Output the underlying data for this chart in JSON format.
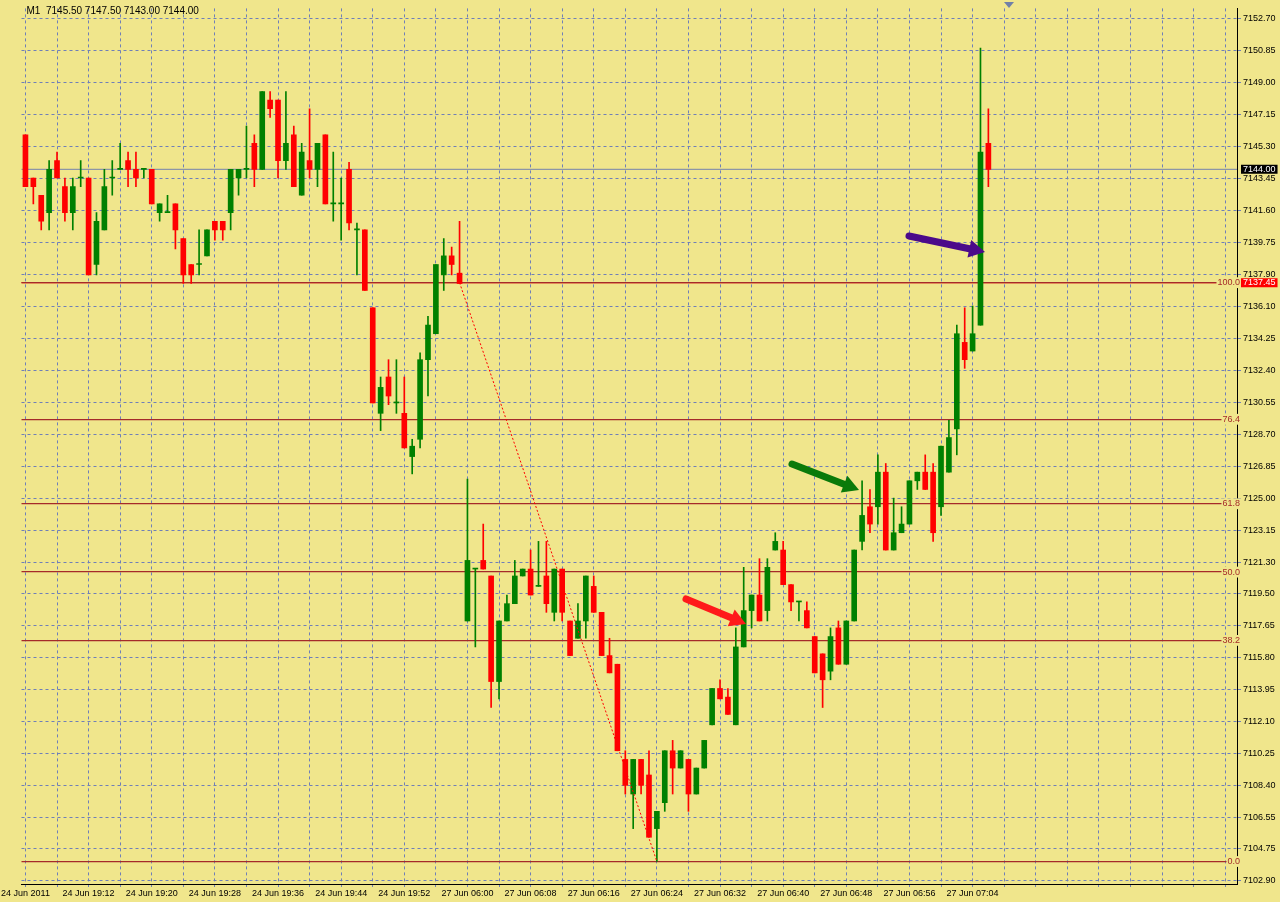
{
  "chart_data": {
    "type": "candlestick",
    "title": "M1  7145.50 7147.50 7143.00 7144.00",
    "categories": [
      "24 Jun 2011",
      null,
      null,
      null,
      null,
      null,
      null,
      null,
      "24 Jun 19:12",
      null,
      null,
      null,
      null,
      null,
      null,
      null,
      "24 Jun 19:20",
      null,
      null,
      null,
      null,
      null,
      null,
      null,
      "24 Jun 19:28",
      null,
      null,
      null,
      null,
      null,
      null,
      null,
      "24 Jun 19:36",
      null,
      null,
      null,
      null,
      null,
      null,
      null,
      "24 Jun 19:44",
      null,
      null,
      null,
      null,
      null,
      null,
      null,
      "24 Jun 19:52",
      null,
      null,
      null,
      null,
      null,
      null,
      null,
      "27 Jun 06:00",
      null,
      null,
      null,
      null,
      null,
      null,
      null,
      "27 Jun 06:08",
      null,
      null,
      null,
      null,
      null,
      null,
      null,
      "27 Jun 06:16",
      null,
      null,
      null,
      null,
      null,
      null,
      null,
      "27 Jun 06:24",
      null,
      null,
      null,
      null,
      null,
      null,
      null,
      "27 Jun 06:32",
      null,
      null,
      null,
      null,
      null,
      null,
      null,
      "27 Jun 06:40",
      null,
      null,
      null,
      null,
      null,
      null,
      null,
      "27 Jun 06:48",
      null,
      null,
      null,
      null,
      null,
      null,
      null,
      "27 Jun 06:56",
      null,
      null,
      null,
      null,
      null,
      null,
      null,
      "27 Jun 07:04",
      null,
      null,
      null,
      null,
      null,
      null,
      null,
      null,
      null,
      null,
      null,
      null,
      null,
      null,
      null,
      null,
      null,
      null,
      null,
      null,
      null,
      null,
      null,
      null,
      null,
      null,
      null,
      null,
      null,
      null,
      null,
      null,
      null
    ],
    "ohlc": [
      [
        7146.0,
        7146.0,
        7143.0,
        7143.0
      ],
      [
        7143.5,
        7143.5,
        7142.0,
        7143.0
      ],
      [
        7142.5,
        7142.5,
        7140.5,
        7141.0
      ],
      [
        7141.5,
        7144.5,
        7140.5,
        7144.0
      ],
      [
        7144.5,
        7145.0,
        7143.5,
        7143.5
      ],
      [
        7143.0,
        7143.5,
        7141.0,
        7141.5
      ],
      [
        7141.5,
        7143.5,
        7140.5,
        7143.0
      ],
      [
        7143.5,
        7144.5,
        7143.0,
        7143.5
      ],
      [
        7143.5,
        7143.5,
        7137.9,
        7137.9
      ],
      [
        7138.5,
        7141.5,
        7137.9,
        7141.0
      ],
      [
        7140.5,
        7144.0,
        7140.5,
        7143.0
      ],
      [
        7143.5,
        7144.5,
        7142.5,
        7143.5
      ],
      [
        7144.0,
        7145.5,
        7144.0,
        7144.0
      ],
      [
        7144.5,
        7145.0,
        7143.0,
        7144.0
      ],
      [
        7144.0,
        7145.0,
        7143.0,
        7143.5
      ],
      [
        7144.0,
        7144.0,
        7143.5,
        7144.0
      ],
      [
        7144.0,
        7144.0,
        7142.0,
        7142.0
      ],
      [
        7141.5,
        7142.0,
        7141.0,
        7142.0
      ],
      [
        7141.5,
        7142.5,
        7141.5,
        7141.5
      ],
      [
        7142.0,
        7142.0,
        7139.4,
        7140.5
      ],
      [
        7140.0,
        7140.0,
        7137.4,
        7137.9
      ],
      [
        7138.5,
        7138.5,
        7137.4,
        7137.9
      ],
      [
        7138.5,
        7140.5,
        7137.9,
        7138.5
      ],
      [
        7139.0,
        7140.5,
        7139.0,
        7140.5
      ],
      [
        7141.0,
        7141.0,
        7139.9,
        7140.5
      ],
      [
        7141.0,
        7141.0,
        7139.9,
        7140.5
      ],
      [
        7141.5,
        7144.0,
        7140.5,
        7144.0
      ],
      [
        7143.5,
        7144.0,
        7142.5,
        7144.0
      ],
      [
        7144.0,
        7146.5,
        7143.5,
        7144.0
      ],
      [
        7145.5,
        7146.0,
        7143.0,
        7144.0
      ],
      [
        7144.0,
        7148.5,
        7144.0,
        7148.5
      ],
      [
        7148.0,
        7148.5,
        7147.0,
        7147.5
      ],
      [
        7148.0,
        7148.0,
        7143.5,
        7144.5
      ],
      [
        7144.5,
        7148.5,
        7144.0,
        7145.5
      ],
      [
        7146.0,
        7146.5,
        7143.0,
        7143.0
      ],
      [
        7142.5,
        7145.5,
        7142.5,
        7145.0
      ],
      [
        7144.5,
        7147.5,
        7143.5,
        7144.0
      ],
      [
        7144.0,
        7145.5,
        7143.0,
        7145.5
      ],
      [
        7146.0,
        7146.0,
        7142.0,
        7142.0
      ],
      [
        7142.0,
        7145.0,
        7141.0,
        7142.0
      ],
      [
        7142.0,
        7143.5,
        7139.9,
        7142.0
      ],
      [
        7144.0,
        7144.4,
        7140.5,
        7140.9
      ],
      [
        7140.5,
        7140.9,
        7137.9,
        7140.5
      ],
      [
        7140.5,
        7140.5,
        7137.0,
        7137.0
      ],
      [
        7136.0,
        7136.0,
        7130.5,
        7130.5
      ],
      [
        7129.9,
        7132.0,
        7128.9,
        7131.4
      ],
      [
        7132.0,
        7133.0,
        7130.4,
        7130.9
      ],
      [
        7130.5,
        7133.0,
        7129.9,
        7130.5
      ],
      [
        7129.9,
        7132.0,
        7127.9,
        7127.9
      ],
      [
        7127.4,
        7128.4,
        7126.4,
        7128.0
      ],
      [
        7128.4,
        7133.4,
        7127.9,
        7133.0
      ],
      [
        7133.0,
        7135.5,
        7130.9,
        7135.0
      ],
      [
        7134.5,
        7138.5,
        7134.5,
        7138.5
      ],
      [
        7137.9,
        7140.0,
        7137.0,
        7139.0
      ],
      [
        7139.0,
        7139.5,
        7137.9,
        7138.5
      ],
      [
        7138.0,
        7141.0,
        7137.4,
        7137.4
      ],
      [
        7117.9,
        7126.1,
        7117.9,
        7121.4
      ],
      [
        7120.9,
        7120.9,
        7116.4,
        7120.9
      ],
      [
        7121.4,
        7123.5,
        7120.9,
        7120.9
      ],
      [
        7120.5,
        7120.5,
        7112.9,
        7114.4
      ],
      [
        7114.4,
        7117.9,
        7113.4,
        7117.9
      ],
      [
        7117.9,
        7119.4,
        7117.9,
        7118.9
      ],
      [
        7118.9,
        7121.4,
        7118.9,
        7120.5
      ],
      [
        7120.5,
        7120.9,
        7120.5,
        7120.9
      ],
      [
        7120.9,
        7122.0,
        7119.4,
        7119.4
      ],
      [
        7119.9,
        7122.5,
        7119.9,
        7119.9
      ],
      [
        7120.5,
        7122.5,
        7118.4,
        7118.9
      ],
      [
        7118.4,
        7120.9,
        7117.9,
        7120.9
      ],
      [
        7120.9,
        7120.9,
        7117.9,
        7118.4
      ],
      [
        7117.9,
        7117.9,
        7115.9,
        7115.9
      ],
      [
        7116.9,
        7118.9,
        7116.9,
        7117.9
      ],
      [
        7117.9,
        7120.5,
        7116.9,
        7120.5
      ],
      [
        7119.9,
        7120.5,
        7118.4,
        7118.4
      ],
      [
        7118.4,
        7118.4,
        7115.9,
        7115.9
      ],
      [
        7115.9,
        7116.9,
        7114.9,
        7114.9
      ],
      [
        7115.4,
        7115.4,
        7110.4,
        7110.4
      ],
      [
        7109.9,
        7110.4,
        7107.9,
        7108.4
      ],
      [
        7107.9,
        7109.9,
        7105.9,
        7109.9
      ],
      [
        7109.9,
        7109.9,
        7107.9,
        7108.4
      ],
      [
        7109.0,
        7110.4,
        7105.4,
        7105.4
      ],
      [
        7105.9,
        7106.9,
        7104.0,
        7106.9
      ],
      [
        7107.4,
        7110.4,
        7106.9,
        7110.4
      ],
      [
        7110.4,
        7111.0,
        7107.9,
        7109.4
      ],
      [
        7109.4,
        7110.4,
        7109.4,
        7110.4
      ],
      [
        7109.9,
        7109.9,
        7106.9,
        7107.9
      ],
      [
        7107.9,
        7109.4,
        7107.9,
        7109.4
      ],
      [
        7109.4,
        7111.0,
        7109.4,
        7111.0
      ],
      [
        7111.9,
        7114.0,
        7111.9,
        7114.0
      ],
      [
        7114.0,
        7114.5,
        7113.4,
        7113.4
      ],
      [
        7113.5,
        7114.0,
        7112.5,
        7112.5
      ],
      [
        7111.9,
        7117.5,
        7111.9,
        7116.4
      ],
      [
        7116.4,
        7121.0,
        7116.4,
        7118.5
      ],
      [
        7118.5,
        7119.4,
        7117.5,
        7119.4
      ],
      [
        7119.4,
        7121.5,
        7117.9,
        7117.9
      ],
      [
        7118.5,
        7121.5,
        7117.9,
        7121.0
      ],
      [
        7122.0,
        7123.0,
        7122.0,
        7122.5
      ],
      [
        7122.0,
        7122.5,
        7120.0,
        7120.0
      ],
      [
        7120.0,
        7120.0,
        7118.5,
        7119.0
      ],
      [
        7119.0,
        7119.0,
        7117.9,
        7119.0
      ],
      [
        7118.5,
        7119.0,
        7117.5,
        7117.5
      ],
      [
        7117.0,
        7117.0,
        7114.9,
        7114.9
      ],
      [
        7116.0,
        7116.0,
        7112.9,
        7114.5
      ],
      [
        7115.0,
        7117.5,
        7114.5,
        7117.0
      ],
      [
        7117.5,
        7117.9,
        7115.4,
        7115.4
      ],
      [
        7115.4,
        7117.9,
        7115.4,
        7117.9
      ],
      [
        7117.9,
        7122.0,
        7117.9,
        7122.0
      ],
      [
        7122.5,
        7126.0,
        7122.0,
        7124.0
      ],
      [
        7124.5,
        7125.5,
        7123.0,
        7123.5
      ],
      [
        7124.5,
        7127.5,
        7123.5,
        7126.5
      ],
      [
        7126.5,
        7127.0,
        7122.0,
        7122.0
      ],
      [
        7122.0,
        7125.0,
        7122.0,
        7123.0
      ],
      [
        7123.0,
        7124.5,
        7123.0,
        7123.5
      ],
      [
        7123.5,
        7126.0,
        7123.5,
        7126.0
      ],
      [
        7126.0,
        7126.5,
        7125.5,
        7126.5
      ],
      [
        7126.5,
        7127.5,
        7125.5,
        7125.5
      ],
      [
        7126.5,
        7127.0,
        7122.5,
        7123.0
      ],
      [
        7124.5,
        7128.0,
        7124.0,
        7128.0
      ],
      [
        7126.5,
        7129.5,
        7126.5,
        7128.5
      ],
      [
        7129.0,
        7135.0,
        7127.5,
        7134.5
      ],
      [
        7134.0,
        7136.0,
        7132.5,
        7133.0
      ],
      [
        7133.5,
        7136.1,
        7133.5,
        7134.5
      ],
      [
        7135.0,
        7151.0,
        7135.0,
        7145.0
      ],
      [
        7145.5,
        7147.5,
        7143.0,
        7144.0
      ],
      null,
      null,
      null,
      null,
      null,
      null,
      null,
      null,
      null,
      null,
      null,
      null,
      null,
      null,
      null,
      null,
      null,
      null,
      null,
      null,
      null,
      null,
      null,
      null,
      null,
      null,
      null,
      null,
      null,
      null,
      null
    ],
    "colors": [
      "#ff0000",
      "#ff0000",
      "#ff0000",
      "#008000",
      "#ff0000",
      "#ff0000",
      "#008000",
      "#008000",
      "#ff0000",
      "#008000",
      "#008000",
      "#008000",
      "#008000",
      "#ff0000",
      "#ff0000",
      "#008000",
      "#ff0000",
      "#008000",
      "#008000",
      "#ff0000",
      "#ff0000",
      "#ff0000",
      "#008000",
      "#008000",
      "#ff0000",
      "#ff0000",
      "#008000",
      "#008000",
      "#008000",
      "#ff0000",
      "#008000",
      "#ff0000",
      "#ff0000",
      "#008000",
      "#ff0000",
      "#008000",
      "#ff0000",
      "#008000",
      "#ff0000",
      "#008000",
      "#008000",
      "#ff0000",
      "#008000",
      "#ff0000",
      "#ff0000",
      "#008000",
      "#ff0000",
      "#008000",
      "#ff0000",
      "#008000",
      "#008000",
      "#008000",
      "#008000",
      "#008000",
      "#ff0000",
      "#ff0000",
      "#008000",
      "#008000",
      "#ff0000",
      "#ff0000",
      "#008000",
      "#008000",
      "#008000",
      "#008000",
      "#ff0000",
      "#008000",
      "#ff0000",
      "#008000",
      "#ff0000",
      "#ff0000",
      "#008000",
      "#008000",
      "#ff0000",
      "#ff0000",
      "#ff0000",
      "#ff0000",
      "#ff0000",
      "#008000",
      "#ff0000",
      "#ff0000",
      "#008000",
      "#008000",
      "#ff0000",
      "#008000",
      "#ff0000",
      "#008000",
      "#008000",
      "#008000",
      "#ff0000",
      "#ff0000",
      "#008000",
      "#008000",
      "#008000",
      "#ff0000",
      "#008000",
      "#008000",
      "#ff0000",
      "#ff0000",
      "#008000",
      "#ff0000",
      "#ff0000",
      "#ff0000",
      "#008000",
      "#ff0000",
      "#008000",
      "#008000",
      "#008000",
      "#ff0000",
      "#008000",
      "#ff0000",
      "#008000",
      "#008000",
      "#008000",
      "#008000",
      "#ff0000",
      "#ff0000",
      "#008000",
      "#008000",
      "#008000",
      "#ff0000",
      "#008000",
      "#008000",
      "#ff0000",
      null,
      null,
      null,
      null,
      null,
      null,
      null,
      null,
      null,
      null,
      null,
      null,
      null,
      null,
      null,
      null,
      null,
      null,
      null,
      null,
      null,
      null,
      null,
      null,
      null,
      null,
      null,
      null,
      null,
      null,
      null
    ],
    "series": [
      {
        "type": "line",
        "color": "#ff0000",
        "line_style": "dotted",
        "marker": "none",
        "values": [
          null,
          null,
          null,
          null,
          null,
          null,
          null,
          null,
          null,
          null,
          null,
          null,
          null,
          null,
          null,
          null,
          null,
          null,
          null,
          null,
          null,
          null,
          null,
          null,
          null,
          null,
          null,
          null,
          null,
          null,
          null,
          null,
          null,
          null,
          null,
          null,
          null,
          null,
          null,
          null,
          null,
          null,
          null,
          null,
          null,
          null,
          null,
          null,
          null,
          null,
          null,
          null,
          null,
          null,
          null,
          7137.45,
          null,
          null,
          null,
          null,
          null,
          null,
          null,
          null,
          null,
          null,
          null,
          null,
          null,
          null,
          null,
          null,
          null,
          null,
          null,
          null,
          null,
          null,
          null,
          null,
          7104.0,
          null,
          null,
          null,
          null,
          null,
          null,
          null,
          null,
          null,
          null,
          null,
          null,
          null,
          null,
          null,
          null,
          null,
          null,
          null,
          null,
          null,
          null,
          null,
          null,
          null,
          null,
          null,
          null,
          null,
          null,
          null,
          null,
          null,
          null,
          null,
          null,
          null,
          null,
          null,
          null,
          null,
          null,
          null,
          null,
          null,
          null,
          null,
          null,
          null,
          null,
          null,
          null,
          null,
          null,
          null,
          null,
          null,
          null,
          null,
          null,
          null,
          null,
          null,
          null,
          null,
          null,
          null,
          null,
          null,
          null,
          null,
          null,
          null
        ]
      }
    ],
    "ylim": [
      7102.7,
      7153.3
    ],
    "yticks": [
      {
        "value": 7102.9,
        "label": "7102.90"
      },
      7104.75,
      7106.55,
      {
        "value": 7108.4,
        "label": "7108.40"
      },
      7110.25,
      {
        "value": 7112.1,
        "label": "7112.10"
      },
      7113.95,
      {
        "value": 7115.8,
        "label": "7115.80"
      },
      7117.65,
      {
        "value": 7119.5,
        "label": "7119.50"
      },
      {
        "value": 7121.3,
        "label": "7121.30"
      },
      7123.15,
      {
        "value": 7125,
        "label": "7125.00"
      },
      7126.85,
      {
        "value": 7128.7,
        "label": "7128.70"
      },
      7130.55,
      {
        "value": 7132.4,
        "label": "7132.40"
      },
      7134.25,
      {
        "value": 7136.1,
        "label": "7136.10"
      },
      7137.45,
      {
        "value": 7137.9,
        "label": "7137.90"
      },
      7139.75,
      {
        "value": 7141.6,
        "label": "7141.60"
      },
      7143.45,
      {
        "value": 7144,
        "label": "7144.00"
      },
      {
        "value": 7145.3,
        "label": "7145.30"
      },
      7147.15,
      {
        "value": 7149,
        "label": "7149.00"
      },
      7150.85,
      {
        "value": 7152.7,
        "label": "7152.70"
      }
    ],
    "y2lim": [
      -3.886,
      147.384
    ],
    "y2ticks": [
      {
        "value": 0,
        "label": "0.0"
      },
      38.2,
      {
        "value": 50,
        "label": "50.0"
      },
      61.8,
      76.4,
      {
        "value": 100,
        "label": "100.0"
      }
    ],
    "ref_lines": [
      {
        "axis": "y",
        "value": 7144.0
      },
      {
        "axis": "y",
        "value": 7137.45,
        "color": "#ff0000"
      }
    ],
    "grid": true
  }
}
